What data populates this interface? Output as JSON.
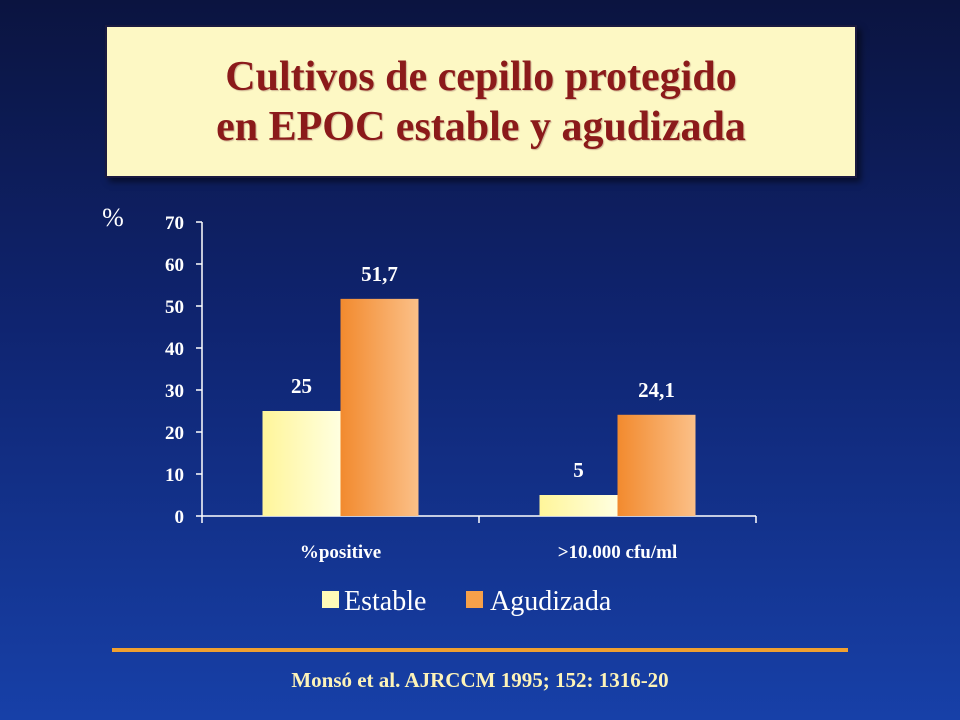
{
  "slide": {
    "title_lines": [
      "Cultivos de cepillo protegido",
      "en EPOC estable y agudizada"
    ],
    "citation": "Monsó et al. AJRCCM 1995; 152: 1316-20"
  },
  "colors": {
    "estable": "#fffab8",
    "agudizada": "#f6a04a",
    "text": "#ffffff",
    "axis": "#ffffff"
  },
  "chart_data": {
    "type": "bar",
    "categories": [
      "%positive",
      ">10.000 cfu/ml"
    ],
    "series": [
      {
        "name": "Estable",
        "values": [
          25,
          5
        ],
        "labels": [
          "25",
          "5"
        ]
      },
      {
        "name": "Agudizada",
        "values": [
          51.7,
          24.1
        ],
        "labels": [
          "51,7",
          "24,1"
        ]
      }
    ],
    "ylabel": "%",
    "xlabel": "",
    "ylim": [
      0,
      70
    ],
    "yticks": [
      0,
      10,
      20,
      30,
      40,
      50,
      60,
      70
    ],
    "grid": false,
    "legend": "bottom"
  }
}
